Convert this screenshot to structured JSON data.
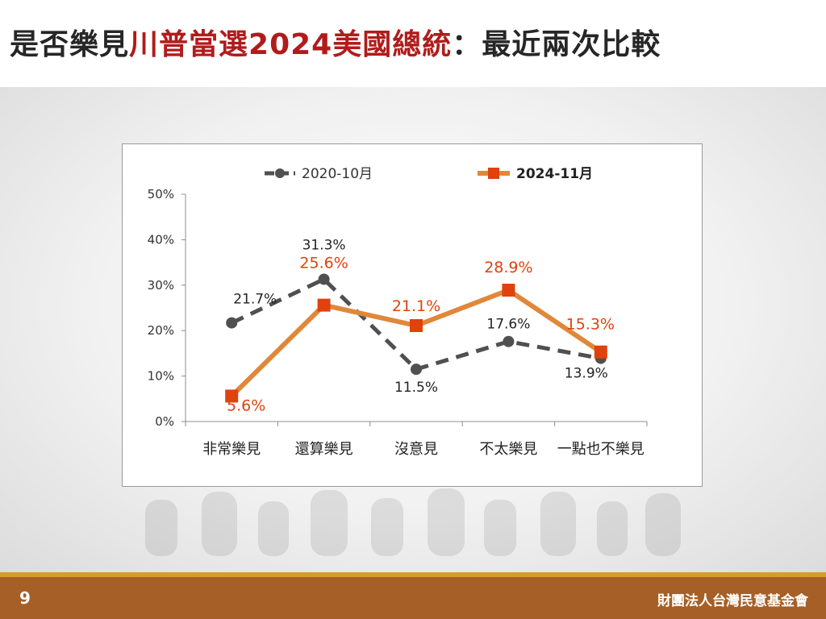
{
  "title": {
    "part1": "是否樂見",
    "highlight": "川普當選2024美國總統",
    "part2": "：最近兩次比較"
  },
  "footer": {
    "page_number": "9",
    "organization": "財團法人台灣民意基金會"
  },
  "colors": {
    "title_highlight": "#b01c1c",
    "series_2020": "#505050",
    "series_2024_line": "#e0883a",
    "series_2024_marker": "#e0420d",
    "series_2024_label": "#e0420d",
    "footer_bg": "#a65f26",
    "footer_accent": "#d79a32"
  },
  "chart_data": {
    "type": "line",
    "categories": [
      "非常樂見",
      "還算樂見",
      "沒意見",
      "不太樂見",
      "一點也不樂見"
    ],
    "series": [
      {
        "name": "2020-10月",
        "values": [
          21.7,
          31.3,
          11.5,
          17.6,
          13.9
        ],
        "labels": [
          "21.7%",
          "31.3%",
          "11.5%",
          "17.6%",
          "13.9%"
        ],
        "style": "dashed",
        "marker": "circle"
      },
      {
        "name": "2024-11月",
        "values": [
          5.6,
          25.6,
          21.1,
          28.9,
          15.3
        ],
        "labels": [
          "5.6%",
          "25.6%",
          "21.1%",
          "28.9%",
          "15.3%"
        ],
        "style": "solid",
        "marker": "square"
      }
    ],
    "ylim": [
      0,
      50
    ],
    "yticks": [
      0,
      10,
      20,
      30,
      40,
      50
    ],
    "ytick_labels": [
      "0%",
      "10%",
      "20%",
      "30%",
      "40%",
      "50%"
    ],
    "grid": false,
    "legend": "top"
  }
}
